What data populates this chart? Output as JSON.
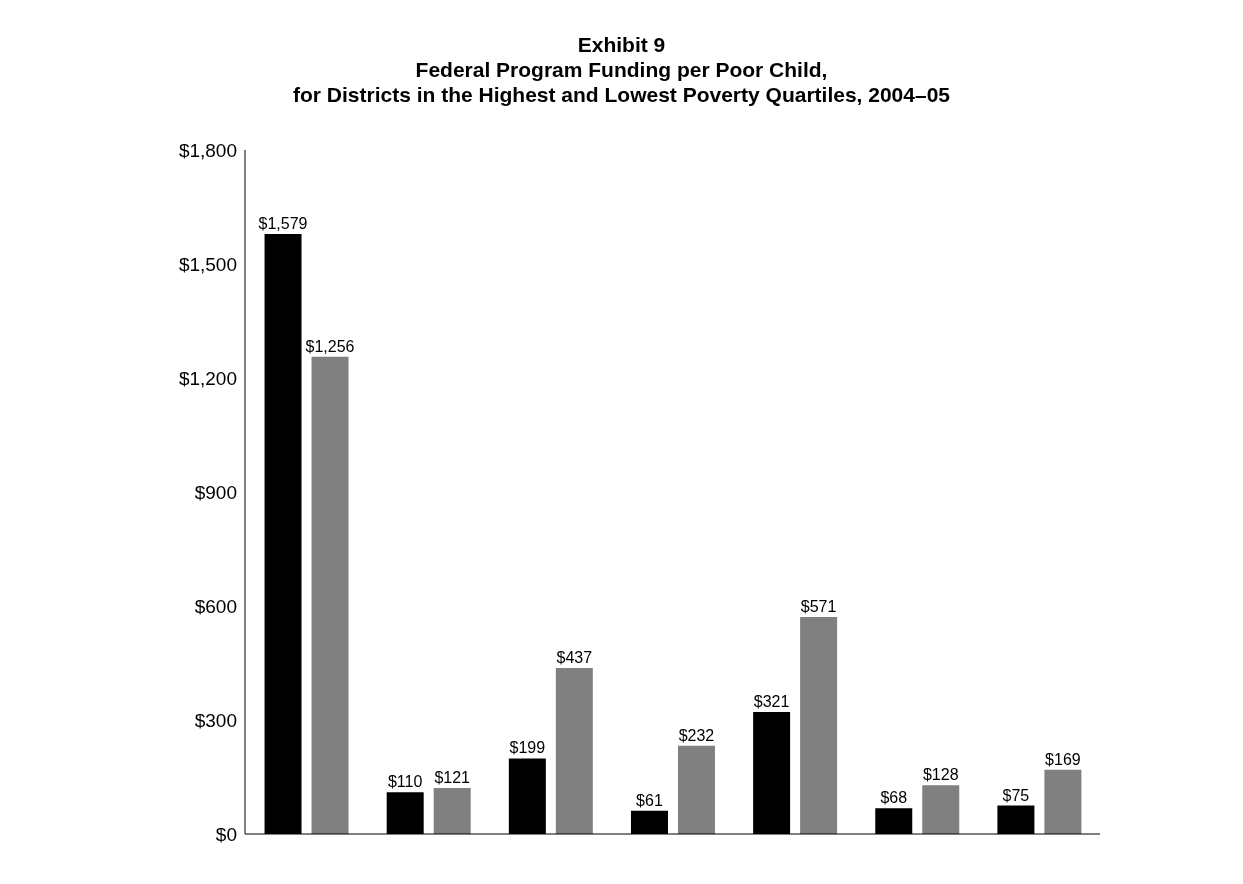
{
  "chart_data": {
    "type": "bar",
    "title": "Exhibit 9\nFederal Program Funding per Poor Child,\nfor Districts in the Highest and Lowest Poverty Quartiles, 2004–05",
    "categories": [
      null,
      null,
      null,
      null,
      null,
      null,
      null
    ],
    "series": [
      {
        "color": "#000000",
        "values": [
          1579,
          110,
          199,
          61,
          321,
          68,
          75
        ],
        "value_labels": [
          "$1,579",
          "$110",
          "$199",
          "$61",
          "$321",
          "$68",
          "$75"
        ]
      },
      {
        "color": "#808080",
        "values": [
          1256,
          121,
          437,
          232,
          571,
          128,
          169
        ],
        "value_labels": [
          "$1,256",
          "$121",
          "$437",
          "$232",
          "$571",
          "$128",
          "$169"
        ]
      }
    ],
    "ylim": [
      0,
      1800
    ],
    "yticks": [
      {
        "value": 0,
        "label": "$0"
      },
      {
        "value": 300,
        "label": "$300"
      },
      {
        "value": 600,
        "label": "$600"
      },
      {
        "value": 900,
        "label": "$900"
      },
      {
        "value": 1200,
        "label": "$1,200"
      },
      {
        "value": 1500,
        "label": "$1,500"
      },
      {
        "value": 1800,
        "label": "$1,800"
      }
    ],
    "grid": false,
    "legend": false
  }
}
